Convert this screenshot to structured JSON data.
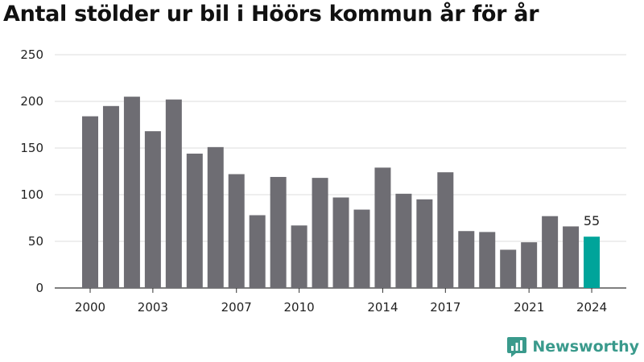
{
  "chart_data": {
    "type": "bar",
    "title": "Antal stölder ur bil i Höörs kommun år för år",
    "xlabel": "",
    "ylabel": "",
    "categories": [
      "2000",
      "2001",
      "2002",
      "2003",
      "2004",
      "2005",
      "2006",
      "2007",
      "2008",
      "2009",
      "2010",
      "2011",
      "2012",
      "2013",
      "2014",
      "2015",
      "2016",
      "2017",
      "2018",
      "2019",
      "2020",
      "2021",
      "2022",
      "2023",
      "2024"
    ],
    "values": [
      184,
      195,
      205,
      168,
      202,
      144,
      151,
      122,
      78,
      119,
      67,
      118,
      97,
      84,
      129,
      101,
      95,
      124,
      61,
      60,
      41,
      49,
      77,
      66,
      55
    ],
    "ylim": [
      0,
      250
    ],
    "yticks": [
      0,
      50,
      100,
      150,
      200,
      250
    ],
    "xtick_labels": [
      "2000",
      "2003",
      "2007",
      "2010",
      "2014",
      "2017",
      "2021",
      "2024"
    ],
    "highlight": {
      "category": "2024",
      "label": "55"
    },
    "grid": true,
    "colors": {
      "bar": "#6e6d73",
      "highlight": "#00a49a",
      "grid": "#dddddd"
    }
  },
  "brand": {
    "name": "Newsworthy",
    "icon": "newsworthy-logo-icon",
    "color": "#3a9a8c"
  }
}
